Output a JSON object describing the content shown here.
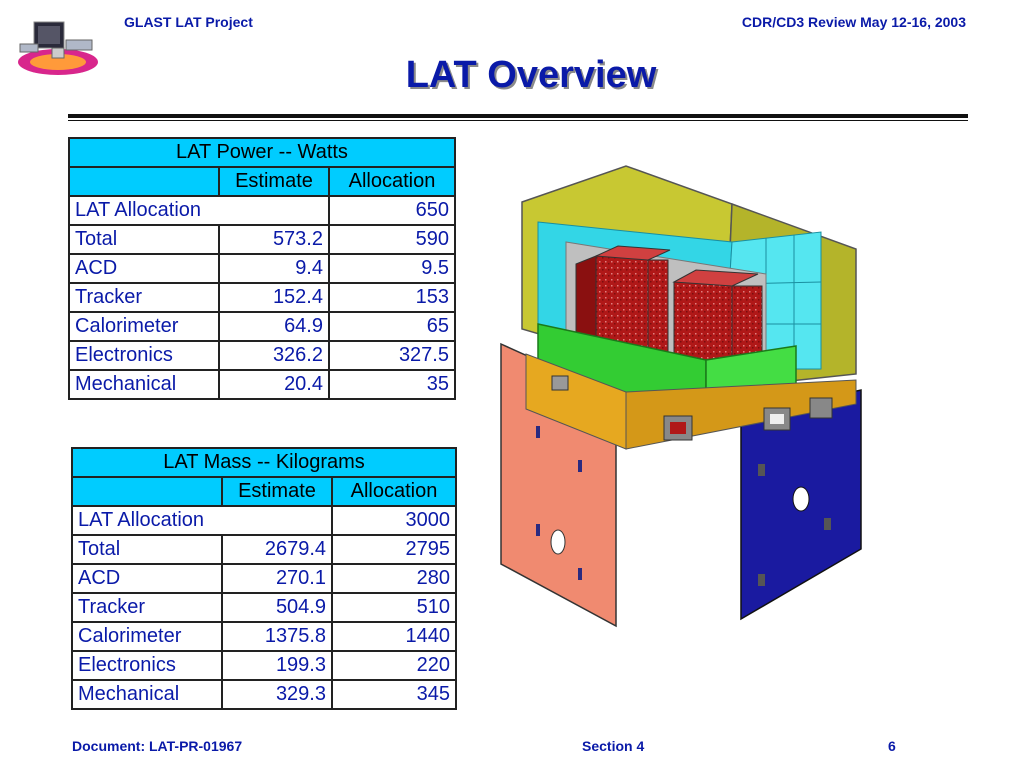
{
  "header": {
    "project": "GLAST LAT Project",
    "review": "CDR/CD3 Review May 12-16, 2003"
  },
  "title": "LAT Overview",
  "power_table": {
    "heading": "LAT Power -- Watts",
    "col_estimate": "Estimate",
    "col_allocation": "Allocation",
    "allocation_row": {
      "label": "LAT Allocation",
      "value": "650"
    },
    "rows": [
      {
        "label": "Total",
        "estimate": "573.2",
        "allocation": "590"
      },
      {
        "label": "ACD",
        "estimate": "9.4",
        "allocation": "9.5"
      },
      {
        "label": "Tracker",
        "estimate": "152.4",
        "allocation": "153"
      },
      {
        "label": "Calorimeter",
        "estimate": "64.9",
        "allocation": "65"
      },
      {
        "label": "Electronics",
        "estimate": "326.2",
        "allocation": "327.5"
      },
      {
        "label": "Mechanical",
        "estimate": "20.4",
        "allocation": "35"
      }
    ]
  },
  "mass_table": {
    "heading": "LAT Mass -- Kilograms",
    "col_estimate": "Estimate",
    "col_allocation": "Allocation",
    "allocation_row": {
      "label": "LAT Allocation",
      "value": "3000"
    },
    "rows": [
      {
        "label": "Total",
        "estimate": "2679.4",
        "allocation": "2795"
      },
      {
        "label": "ACD",
        "estimate": "270.1",
        "allocation": "280"
      },
      {
        "label": "Tracker",
        "estimate": "504.9",
        "allocation": "510"
      },
      {
        "label": "Calorimeter",
        "estimate": "1375.8",
        "allocation": "1440"
      },
      {
        "label": "Electronics",
        "estimate": "199.3",
        "allocation": "220"
      },
      {
        "label": "Mechanical",
        "estimate": "329.3",
        "allocation": "345"
      }
    ]
  },
  "footer": {
    "document": "Document:   LAT-PR-01967",
    "section": "Section 4",
    "page": "6"
  },
  "colors": {
    "text_blue": "#0a1aa8",
    "table_header": "#00ccff",
    "radiator_salmon": "#f08a70",
    "radiator_blue": "#1a1aa0",
    "shell_olive": "#c8c832",
    "acd_cyan": "#33d6e6",
    "tower_red": "#b01818",
    "grid_green": "#33cc33"
  }
}
